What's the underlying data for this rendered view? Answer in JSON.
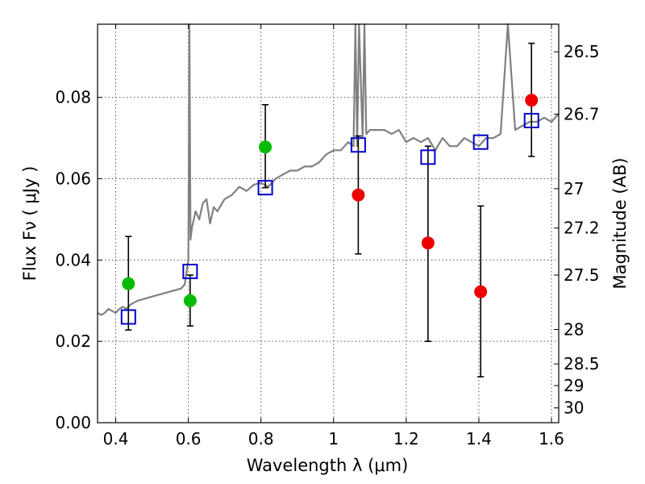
{
  "chart_data": {
    "type": "scatter",
    "xlabel": "Wavelength  λ (μm)",
    "ylabel": "Flux  Fν  ( μJy )",
    "ylabel_right": "Magnitude (AB)",
    "xlim": [
      0.35,
      1.62
    ],
    "ylim": [
      0.0,
      0.098
    ],
    "grid": true,
    "x_ticks": [
      {
        "value": 0.4,
        "label": "0.4"
      },
      {
        "value": 0.6,
        "label": "0.6"
      },
      {
        "value": 0.8,
        "label": "0.8"
      },
      {
        "value": 1.0,
        "label": "1"
      },
      {
        "value": 1.2,
        "label": "1.2"
      },
      {
        "value": 1.4,
        "label": "1.4"
      },
      {
        "value": 1.6,
        "label": "1.6"
      }
    ],
    "y_ticks": [
      {
        "value": 0.0,
        "label": "0.00"
      },
      {
        "value": 0.02,
        "label": "0.02"
      },
      {
        "value": 0.04,
        "label": "0.04"
      },
      {
        "value": 0.06,
        "label": "0.06"
      },
      {
        "value": 0.08,
        "label": "0.08"
      }
    ],
    "right_ticks": [
      {
        "mag": 26.5,
        "label": "26.5"
      },
      {
        "mag": 26.7,
        "label": "26.7"
      },
      {
        "mag": 27.0,
        "label": "27"
      },
      {
        "mag": 27.2,
        "label": "27.2"
      },
      {
        "mag": 27.5,
        "label": "27.5"
      },
      {
        "mag": 28.0,
        "label": "28"
      },
      {
        "mag": 28.5,
        "label": "28.5"
      },
      {
        "mag": 29.0,
        "label": "29"
      },
      {
        "mag": 30.0,
        "label": "30"
      }
    ],
    "colors": {
      "spectrum": "#808080",
      "model_box": "#0000cc",
      "green": "#00bb00",
      "red": "#ee0000",
      "errorbar": "#000000",
      "grid": "#555555"
    },
    "spectrum": {
      "x": [
        0.35,
        0.36,
        0.37,
        0.38,
        0.39,
        0.4,
        0.41,
        0.42,
        0.43,
        0.44,
        0.45,
        0.46,
        0.48,
        0.5,
        0.52,
        0.54,
        0.56,
        0.58,
        0.59,
        0.6,
        0.603,
        0.606,
        0.61,
        0.62,
        0.63,
        0.64,
        0.65,
        0.66,
        0.67,
        0.68,
        0.7,
        0.72,
        0.74,
        0.76,
        0.78,
        0.8,
        0.82,
        0.84,
        0.86,
        0.88,
        0.9,
        0.92,
        0.94,
        0.96,
        0.98,
        1.0,
        1.02,
        1.04,
        1.055,
        1.06,
        1.065,
        1.07,
        1.08,
        1.085,
        1.09,
        1.1,
        1.12,
        1.14,
        1.16,
        1.18,
        1.2,
        1.22,
        1.24,
        1.26,
        1.28,
        1.3,
        1.32,
        1.34,
        1.36,
        1.38,
        1.4,
        1.42,
        1.44,
        1.46,
        1.48,
        1.5,
        1.52,
        1.54,
        1.56,
        1.58,
        1.6,
        1.62
      ],
      "y": [
        0.027,
        0.0265,
        0.027,
        0.028,
        0.0275,
        0.027,
        0.028,
        0.0285,
        0.028,
        0.029,
        0.0295,
        0.03,
        0.0305,
        0.031,
        0.0315,
        0.032,
        0.0325,
        0.033,
        0.034,
        0.04,
        0.098,
        0.045,
        0.048,
        0.052,
        0.05,
        0.054,
        0.055,
        0.049,
        0.053,
        0.052,
        0.055,
        0.056,
        0.058,
        0.057,
        0.0585,
        0.059,
        0.058,
        0.06,
        0.061,
        0.062,
        0.062,
        0.063,
        0.063,
        0.064,
        0.066,
        0.067,
        0.067,
        0.069,
        0.068,
        0.098,
        0.068,
        0.098,
        0.07,
        0.098,
        0.071,
        0.072,
        0.072,
        0.072,
        0.071,
        0.072,
        0.069,
        0.07,
        0.069,
        0.07,
        0.067,
        0.07,
        0.068,
        0.068,
        0.07,
        0.069,
        0.068,
        0.07,
        0.07,
        0.071,
        0.098,
        0.072,
        0.073,
        0.074,
        0.074,
        0.075,
        0.074,
        0.076
      ]
    },
    "model_points": {
      "x": [
        0.435,
        0.605,
        0.812,
        1.068,
        1.26,
        1.405,
        1.545
      ],
      "y": [
        0.026,
        0.0372,
        0.0578,
        0.0683,
        0.0653,
        0.069,
        0.0743
      ]
    },
    "green_points": {
      "x": [
        0.435,
        0.605,
        0.812
      ],
      "y": [
        0.0342,
        0.03,
        0.0678
      ],
      "err_low": [
        0.0228,
        0.0238,
        0.0578
      ],
      "err_high": [
        0.0458,
        0.0363,
        0.0782
      ]
    },
    "red_points": {
      "x": [
        1.068,
        1.26,
        1.405,
        1.545
      ],
      "y": [
        0.056,
        0.0442,
        0.0322,
        0.0793
      ],
      "err_low": [
        0.0415,
        0.02,
        0.0113,
        0.0655
      ],
      "err_high": [
        0.0705,
        0.068,
        0.0533,
        0.0933
      ]
    }
  }
}
